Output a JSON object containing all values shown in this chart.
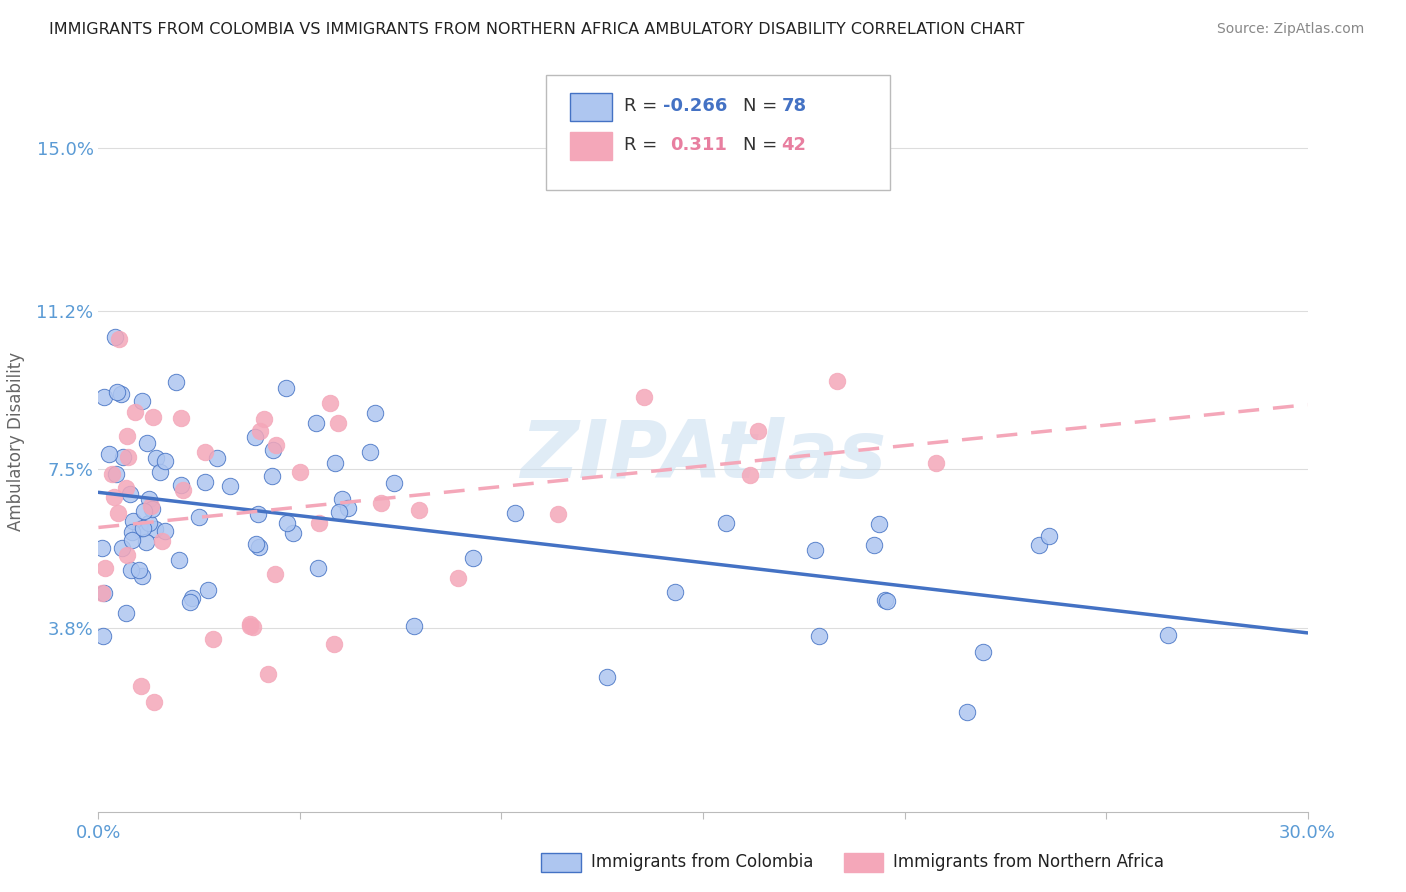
{
  "title": "IMMIGRANTS FROM COLOMBIA VS IMMIGRANTS FROM NORTHERN AFRICA AMBULATORY DISABILITY CORRELATION CHART",
  "source": "Source: ZipAtlas.com",
  "ylabel": "Ambulatory Disability",
  "xlim": [
    0.0,
    0.3
  ],
  "ylim": [
    -0.005,
    0.168
  ],
  "yticks": [
    0.038,
    0.075,
    0.112,
    0.15
  ],
  "ytick_labels": [
    "3.8%",
    "7.5%",
    "11.2%",
    "15.0%"
  ],
  "xticks": [
    0.0,
    0.05,
    0.1,
    0.15,
    0.2,
    0.25,
    0.3
  ],
  "xtick_labels": [
    "0.0%",
    "",
    "",
    "",
    "",
    "",
    "30.0%"
  ],
  "colombia_R": -0.266,
  "colombia_N": 78,
  "northern_africa_R": 0.311,
  "northern_africa_N": 42,
  "colombia_color": "#aec6f0",
  "northern_africa_color": "#f4a7b9",
  "colombia_line_color": "#4472c4",
  "northern_africa_line_color": "#f4a7b9",
  "watermark": "ZIPAtlas",
  "background_color": "#ffffff",
  "grid_color": "#dddddd",
  "title_color": "#222222",
  "axis_label_color": "#5b9bd5",
  "legend_r_color_col": "#4472c4",
  "legend_n_color_col": "#4472c4",
  "legend_r_color_naf": "#e87fa0",
  "legend_n_color_naf": "#e87fa0"
}
